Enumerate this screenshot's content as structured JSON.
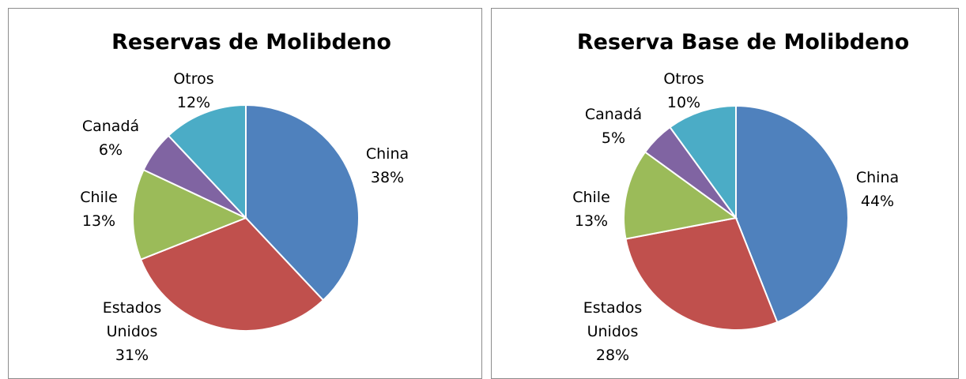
{
  "chart_data": [
    {
      "type": "pie",
      "title": "Reservas de Molibdeno",
      "categories": [
        "China",
        "Estados Unidos",
        "Chile",
        "Canadá",
        "Otros"
      ],
      "values": [
        38,
        31,
        13,
        6,
        12
      ],
      "value_labels": [
        "38%",
        "31%",
        "13%",
        "6%",
        "12%"
      ],
      "colors": [
        "#4f81bd",
        "#c0504d",
        "#9bbb59",
        "#8064a2",
        "#4bacc6"
      ]
    },
    {
      "type": "pie",
      "title": "Reserva Base de Molibdeno",
      "categories": [
        "China",
        "Estados Unidos",
        "Chile",
        "Canadá",
        "Otros"
      ],
      "values": [
        44,
        28,
        13,
        5,
        10
      ],
      "value_labels": [
        "44%",
        "28%",
        "13%",
        "5%",
        "10%"
      ],
      "colors": [
        "#4f81bd",
        "#c0504d",
        "#9bbb59",
        "#8064a2",
        "#4bacc6"
      ]
    }
  ]
}
